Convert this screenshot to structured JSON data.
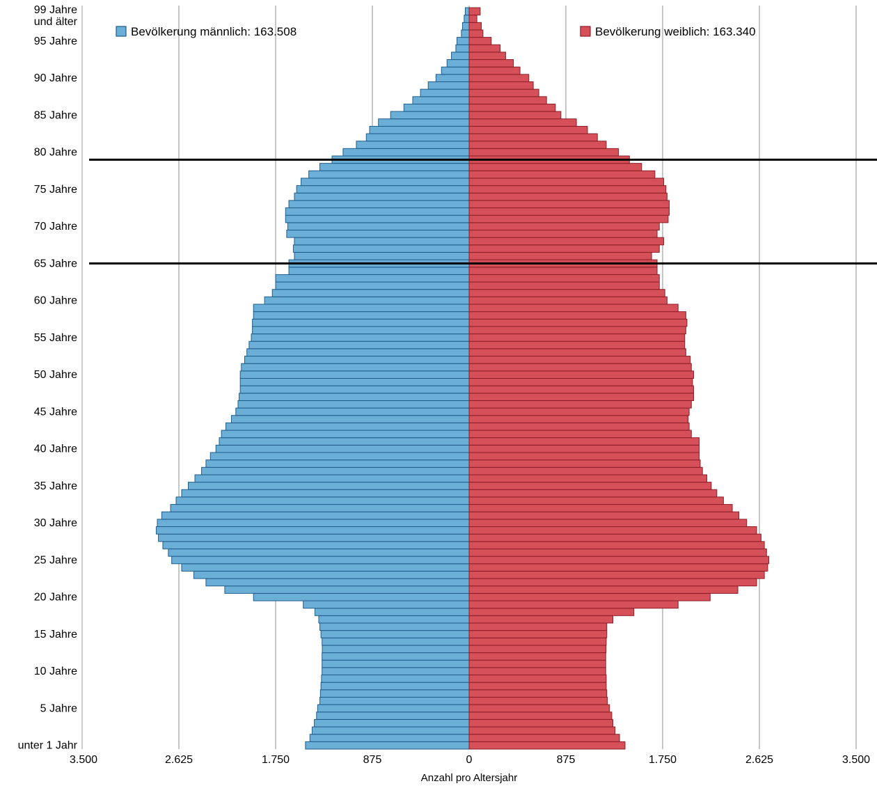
{
  "chart_data": {
    "type": "bar",
    "orientation": "horizontal",
    "layout": "population-pyramid",
    "xlabel": "Anzahl pro Altersjahr",
    "xlim": [
      -3500,
      3500
    ],
    "x_ticks": [
      -3500,
      -2625,
      -1750,
      -875,
      0,
      875,
      1750,
      2625,
      3500
    ],
    "x_tick_labels": [
      "3.500",
      "2.625",
      "1.750",
      "875",
      "0",
      "875",
      "1.750",
      "2.625",
      "3.500"
    ],
    "y_tick_labels": [
      {
        "age": 0,
        "label": "unter 1 Jahr"
      },
      {
        "age": 5,
        "label": "5 Jahre"
      },
      {
        "age": 10,
        "label": "10 Jahre"
      },
      {
        "age": 15,
        "label": "15 Jahre"
      },
      {
        "age": 20,
        "label": "20 Jahre"
      },
      {
        "age": 25,
        "label": "25 Jahre"
      },
      {
        "age": 30,
        "label": "30 Jahre"
      },
      {
        "age": 35,
        "label": "35 Jahre"
      },
      {
        "age": 40,
        "label": "40 Jahre"
      },
      {
        "age": 45,
        "label": "45 Jahre"
      },
      {
        "age": 50,
        "label": "50 Jahre"
      },
      {
        "age": 55,
        "label": "55 Jahre"
      },
      {
        "age": 60,
        "label": "60 Jahre"
      },
      {
        "age": 65,
        "label": "65 Jahre"
      },
      {
        "age": 70,
        "label": "70 Jahre"
      },
      {
        "age": 75,
        "label": "75 Jahre"
      },
      {
        "age": 80,
        "label": "80 Jahre"
      },
      {
        "age": 85,
        "label": "85 Jahre"
      },
      {
        "age": 90,
        "label": "90 Jahre"
      },
      {
        "age": 95,
        "label": "95 Jahre"
      },
      {
        "age": 99,
        "label": "99 Jahre\nund älter"
      }
    ],
    "ages": [
      0,
      1,
      2,
      3,
      4,
      5,
      6,
      7,
      8,
      9,
      10,
      11,
      12,
      13,
      14,
      15,
      16,
      17,
      18,
      19,
      20,
      21,
      22,
      23,
      24,
      25,
      26,
      27,
      28,
      29,
      30,
      31,
      32,
      33,
      34,
      35,
      36,
      37,
      38,
      39,
      40,
      41,
      42,
      43,
      44,
      45,
      46,
      47,
      48,
      49,
      50,
      51,
      52,
      53,
      54,
      55,
      56,
      57,
      58,
      59,
      60,
      61,
      62,
      63,
      64,
      65,
      66,
      67,
      68,
      69,
      70,
      71,
      72,
      73,
      74,
      75,
      76,
      77,
      78,
      79,
      80,
      81,
      82,
      83,
      84,
      85,
      86,
      87,
      88,
      89,
      90,
      91,
      92,
      93,
      94,
      95,
      96,
      97,
      98,
      99
    ],
    "series": [
      {
        "name": "Bevölkerung männlich: 163.508",
        "side": "left",
        "color": "#6baed6",
        "edge": "#1f5c8a",
        "values": [
          1480,
          1440,
          1420,
          1400,
          1380,
          1370,
          1350,
          1345,
          1340,
          1335,
          1330,
          1330,
          1330,
          1328,
          1330,
          1340,
          1350,
          1360,
          1395,
          1500,
          1950,
          2210,
          2380,
          2490,
          2600,
          2690,
          2720,
          2770,
          2810,
          2830,
          2820,
          2780,
          2700,
          2650,
          2600,
          2540,
          2480,
          2420,
          2380,
          2340,
          2290,
          2260,
          2240,
          2200,
          2150,
          2110,
          2090,
          2080,
          2070,
          2070,
          2070,
          2060,
          2030,
          2010,
          1990,
          1970,
          1960,
          1960,
          1950,
          1950,
          1850,
          1780,
          1750,
          1750,
          1630,
          1630,
          1580,
          1590,
          1580,
          1650,
          1640,
          1660,
          1660,
          1630,
          1580,
          1560,
          1520,
          1450,
          1350,
          1240,
          1140,
          1020,
          930,
          900,
          820,
          710,
          590,
          510,
          440,
          370,
          300,
          250,
          200,
          160,
          120,
          110,
          70,
          60,
          45,
          35
        ]
      },
      {
        "name": "Bevölkerung weiblich: 163.340",
        "side": "right",
        "color": "#d6505a",
        "edge": "#8c1c24",
        "values": [
          1410,
          1360,
          1320,
          1300,
          1290,
          1270,
          1250,
          1245,
          1240,
          1240,
          1235,
          1235,
          1235,
          1238,
          1240,
          1245,
          1245,
          1300,
          1490,
          1890,
          2180,
          2430,
          2600,
          2670,
          2700,
          2710,
          2690,
          2670,
          2640,
          2600,
          2510,
          2440,
          2380,
          2300,
          2240,
          2190,
          2150,
          2110,
          2090,
          2080,
          2080,
          2080,
          2010,
          1990,
          1980,
          1990,
          2010,
          2030,
          2030,
          2020,
          2030,
          2010,
          2000,
          1960,
          1950,
          1950,
          1960,
          1970,
          1960,
          1890,
          1790,
          1770,
          1720,
          1720,
          1700,
          1700,
          1650,
          1720,
          1760,
          1700,
          1720,
          1800,
          1810,
          1810,
          1790,
          1780,
          1760,
          1680,
          1560,
          1450,
          1350,
          1240,
          1160,
          1070,
          970,
          830,
          780,
          700,
          630,
          580,
          540,
          460,
          400,
          330,
          280,
          200,
          125,
          110,
          70,
          100
        ]
      }
    ],
    "reference_lines_age": [
      65.5,
      79.5
    ]
  }
}
